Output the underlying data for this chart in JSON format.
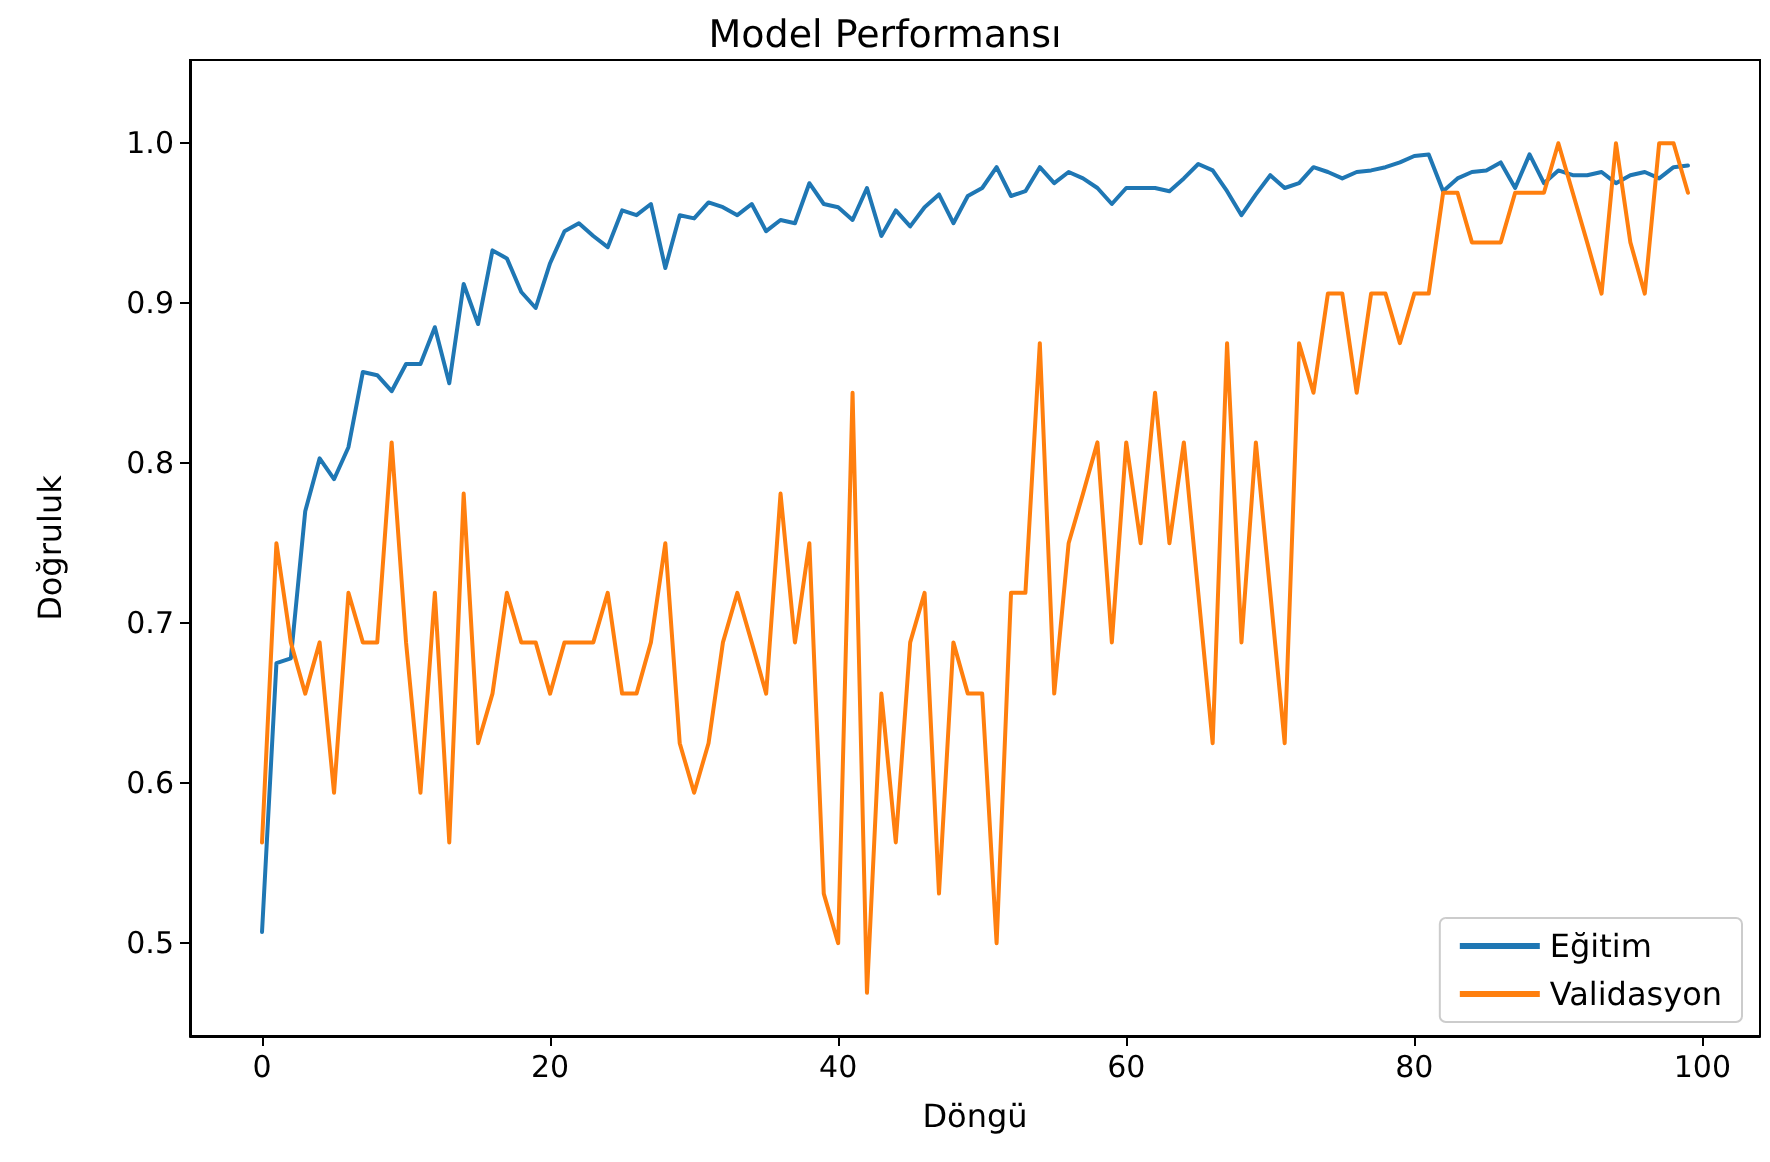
{
  "chart_data": {
    "type": "line",
    "title": "Model Performansı",
    "xlabel": "Döngü",
    "ylabel": "Doğruluk",
    "x": [
      0,
      1,
      2,
      3,
      4,
      5,
      6,
      7,
      8,
      9,
      10,
      11,
      12,
      13,
      14,
      15,
      16,
      17,
      18,
      19,
      20,
      21,
      22,
      23,
      24,
      25,
      26,
      27,
      28,
      29,
      30,
      31,
      32,
      33,
      34,
      35,
      36,
      37,
      38,
      39,
      40,
      41,
      42,
      43,
      44,
      45,
      46,
      47,
      48,
      49,
      50,
      51,
      52,
      53,
      54,
      55,
      56,
      57,
      58,
      59,
      60,
      61,
      62,
      63,
      64,
      65,
      66,
      67,
      68,
      69,
      70,
      71,
      72,
      73,
      74,
      75,
      76,
      77,
      78,
      79,
      80,
      81,
      82,
      83,
      84,
      85,
      86,
      87,
      88,
      89,
      90,
      91,
      92,
      93,
      94,
      95,
      96,
      97,
      98,
      99
    ],
    "series": [
      {
        "name": "Eğitim",
        "color": "#1f77b4",
        "values": [
          0.507,
          0.675,
          0.678,
          0.77,
          0.803,
          0.79,
          0.81,
          0.857,
          0.855,
          0.845,
          0.862,
          0.862,
          0.885,
          0.85,
          0.912,
          0.887,
          0.933,
          0.928,
          0.907,
          0.897,
          0.925,
          0.945,
          0.95,
          0.942,
          0.935,
          0.958,
          0.955,
          0.962,
          0.922,
          0.955,
          0.953,
          0.963,
          0.96,
          0.955,
          0.962,
          0.945,
          0.952,
          0.95,
          0.975,
          0.962,
          0.96,
          0.952,
          0.972,
          0.942,
          0.958,
          0.948,
          0.96,
          0.968,
          0.95,
          0.967,
          0.972,
          0.985,
          0.967,
          0.97,
          0.985,
          0.975,
          0.982,
          0.978,
          0.972,
          0.962,
          0.972,
          0.972,
          0.972,
          0.97,
          0.978,
          0.987,
          0.983,
          0.97,
          0.955,
          0.968,
          0.98,
          0.972,
          0.975,
          0.985,
          0.982,
          0.978,
          0.982,
          0.983,
          0.985,
          0.988,
          0.992,
          0.993,
          0.97,
          0.978,
          0.982,
          0.983,
          0.988,
          0.972,
          0.993,
          0.975,
          0.983,
          0.98,
          0.98,
          0.982,
          0.975,
          0.98,
          0.982,
          0.978,
          0.985,
          0.986
        ]
      },
      {
        "name": "Validasyon",
        "color": "#ff7f0e",
        "values": [
          0.563,
          0.75,
          0.688,
          0.656,
          0.688,
          0.594,
          0.719,
          0.688,
          0.688,
          0.813,
          0.688,
          0.594,
          0.719,
          0.563,
          0.781,
          0.625,
          0.656,
          0.719,
          0.688,
          0.688,
          0.656,
          0.688,
          0.688,
          0.688,
          0.719,
          0.656,
          0.656,
          0.688,
          0.75,
          0.625,
          0.594,
          0.625,
          0.688,
          0.719,
          0.688,
          0.656,
          0.781,
          0.688,
          0.75,
          0.531,
          0.5,
          0.844,
          0.469,
          0.656,
          0.563,
          0.688,
          0.719,
          0.531,
          0.688,
          0.656,
          0.656,
          0.5,
          0.719,
          0.719,
          0.875,
          0.656,
          0.75,
          0.781,
          0.813,
          0.688,
          0.813,
          0.75,
          0.844,
          0.75,
          0.813,
          0.719,
          0.625,
          0.875,
          0.688,
          0.813,
          0.719,
          0.625,
          0.875,
          0.844,
          0.906,
          0.906,
          0.844,
          0.906,
          0.906,
          0.875,
          0.906,
          0.906,
          0.969,
          0.969,
          0.938,
          0.938,
          0.938,
          0.969,
          0.969,
          0.969,
          1.0,
          0.969,
          0.938,
          0.906,
          1.0,
          0.938,
          0.906,
          1.0,
          1.0,
          0.969
        ]
      }
    ],
    "xlim": [
      -5,
      104
    ],
    "ylim": [
      0.442,
      1.052
    ],
    "xticks": [
      0,
      20,
      40,
      60,
      80,
      100
    ],
    "yticks": [
      0.5,
      0.6,
      0.7,
      0.8,
      0.9,
      {
        "value": 1,
        "label": "1.0"
      }
    ],
    "legend": "bottom right",
    "grid": false,
    "marker": "none",
    "line_style": "solid"
  }
}
